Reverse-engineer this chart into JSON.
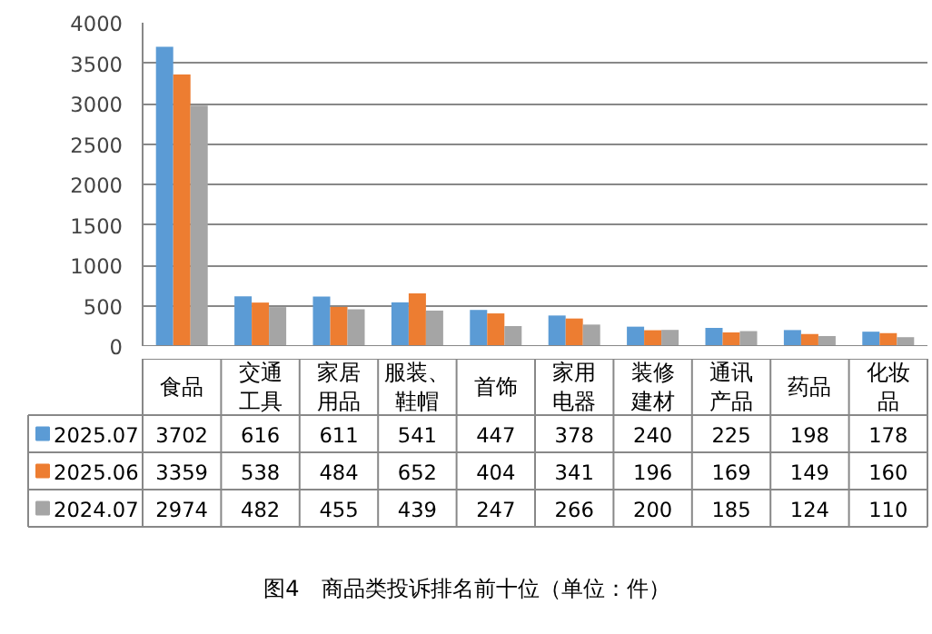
{
  "chart_data": {
    "type": "bar",
    "title": "图4　商品类投诉排名前十位（单位：件）",
    "categories": [
      "食品",
      "交通工具",
      "家居用品",
      "服装、鞋帽",
      "首饰",
      "家用电器",
      "装修建材",
      "通讯产品",
      "药品",
      "化妆品"
    ],
    "series": [
      {
        "name": "2025.07",
        "color": "#5b9bd5",
        "values": [
          3702,
          616,
          611,
          541,
          447,
          378,
          240,
          225,
          198,
          178
        ]
      },
      {
        "name": "2025.06",
        "color": "#ed7d31",
        "values": [
          3359,
          538,
          484,
          652,
          404,
          341,
          196,
          169,
          149,
          160
        ]
      },
      {
        "name": "2024.07",
        "color": "#a5a5a5",
        "values": [
          2974,
          482,
          455,
          439,
          247,
          266,
          200,
          185,
          124,
          110
        ]
      }
    ],
    "ylim": [
      0,
      4000
    ],
    "yticks": [
      0,
      500,
      1000,
      1500,
      2000,
      2500,
      3000,
      3500,
      4000
    ],
    "grid": "y",
    "data_labels": true,
    "legend": "left"
  }
}
